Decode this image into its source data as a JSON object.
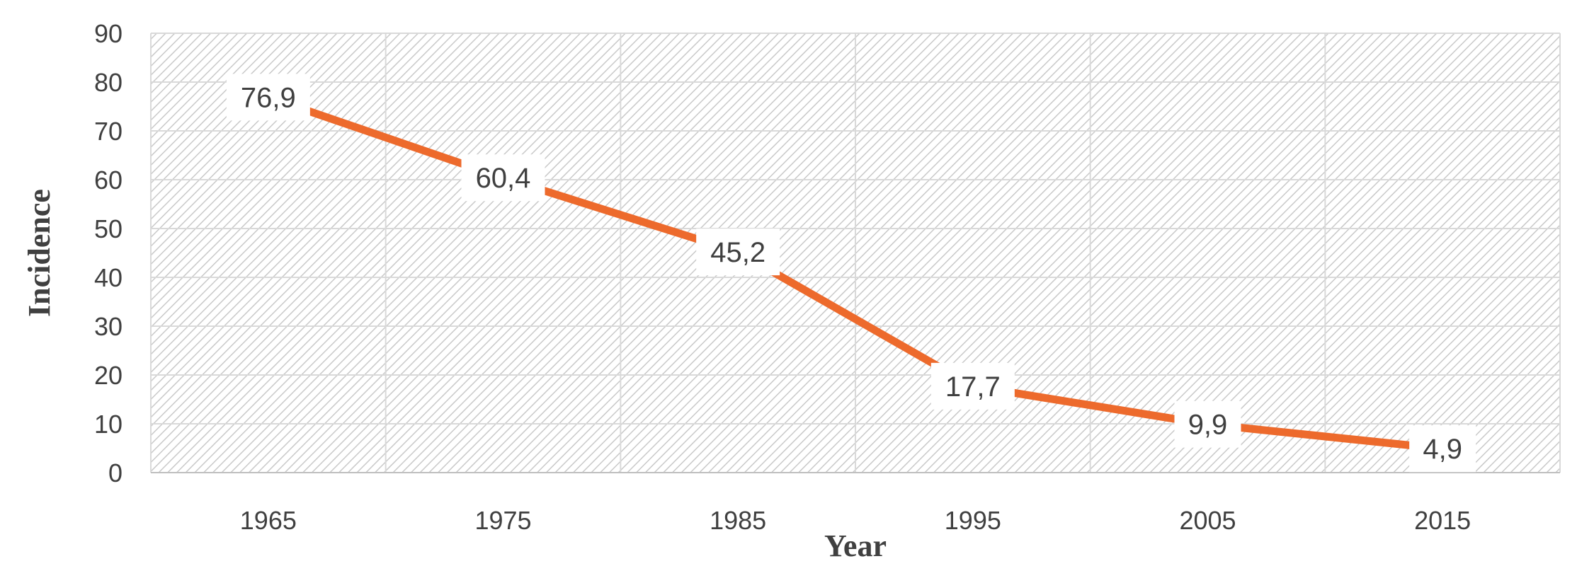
{
  "chart_data": {
    "type": "line",
    "title": "",
    "xlabel": "Year",
    "ylabel": "Incidence",
    "categories": [
      "1965",
      "1975",
      "1985",
      "1995",
      "2005",
      "2015"
    ],
    "series": [
      {
        "values": [
          76.9,
          60.4,
          45.2,
          17.7,
          9.9,
          4.9
        ],
        "labels": [
          "76,9",
          "60,4",
          "45,2",
          "17,7",
          "9,9",
          "4,9"
        ],
        "color": "#ED6A2C"
      }
    ],
    "ylim": [
      0,
      90
    ],
    "yticks": [
      "0",
      "10",
      "20",
      "30",
      "40",
      "50",
      "60",
      "70",
      "80",
      "90"
    ],
    "grid": true,
    "legend": "none",
    "plot_background": "diagonal-hatch"
  }
}
